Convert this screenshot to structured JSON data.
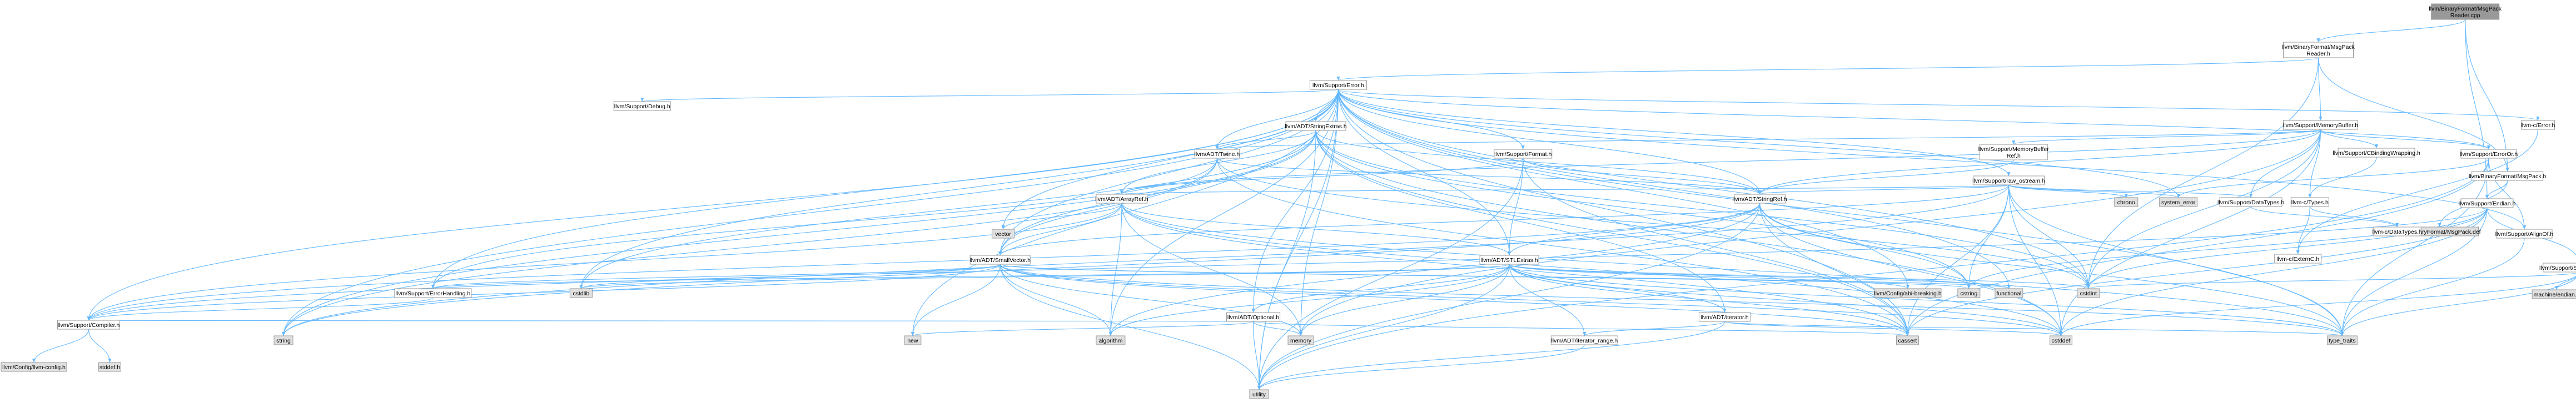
{
  "colors": {
    "edge": "#63b8ff",
    "border": "#999999",
    "white": "#ffffff",
    "grey": "#e0e0e0",
    "root": "#999999",
    "red_text": "#ff0000",
    "black_text": "#000000"
  },
  "nodes": [
    {
      "id": "root",
      "label": "llvm/BinaryFormat/MsgPack\nReader.cpp",
      "style": "root"
    },
    {
      "id": "reader_h",
      "label": "llvm/BinaryFormat/MsgPack\nReader.h",
      "style": "white"
    },
    {
      "id": "error_h",
      "label": "llvm/Support/Error.h",
      "style": "white"
    },
    {
      "id": "debug_h",
      "label": "llvm/Support/Debug.h",
      "style": "white"
    },
    {
      "id": "stringextras_h",
      "label": "llvm/ADT/StringExtras.h",
      "style": "red"
    },
    {
      "id": "twine_h",
      "label": "llvm/ADT/Twine.h",
      "style": "white"
    },
    {
      "id": "format_h",
      "label": "llvm/Support/Format.h",
      "style": "red"
    },
    {
      "id": "membuf_h",
      "label": "llvm/Support/MemoryBuffer.h",
      "style": "white"
    },
    {
      "id": "membufref_h",
      "label": "llvm/Support/MemoryBuffer\nRef.h",
      "style": "white"
    },
    {
      "id": "cbinding_h",
      "label": "llvm/Support/CBindingWrapping.h",
      "style": "red"
    },
    {
      "id": "rawostream_h",
      "label": "llvm/Support/raw_ostream.h",
      "style": "white"
    },
    {
      "id": "llvmc_error_h",
      "label": "llvm-c/Error.h",
      "style": "white"
    },
    {
      "id": "erroror_h",
      "label": "llvm/Support/ErrorOr.h",
      "style": "white"
    },
    {
      "id": "msgpack_h",
      "label": "llvm/BinaryFormat/MsgPack.h",
      "style": "white"
    },
    {
      "id": "endian_h",
      "label": "llvm/Support/Endian.h",
      "style": "white"
    },
    {
      "id": "alignof_h",
      "label": "llvm/Support/AlignOf.h",
      "style": "white"
    },
    {
      "id": "msgpack_def",
      "label": "llvm/BinaryFormat/MsgPack.def",
      "style": "grey"
    },
    {
      "id": "swapbyte_h",
      "label": "llvm/Support/SwapByteOrder.h",
      "style": "white"
    },
    {
      "id": "machine_endian",
      "label": "machine/endian.h",
      "style": "grey"
    },
    {
      "id": "arrayref_h",
      "label": "llvm/ADT/ArrayRef.h",
      "style": "red"
    },
    {
      "id": "stringref_h",
      "label": "llvm/ADT/StringRef.h",
      "style": "red"
    },
    {
      "id": "chrono",
      "label": "chrono",
      "style": "grey"
    },
    {
      "id": "datatypes_h",
      "label": "llvm/Support/DataTypes.h",
      "style": "white"
    },
    {
      "id": "system_error",
      "label": "system_error",
      "style": "grey"
    },
    {
      "id": "llvmc_types_h",
      "label": "llvm-c/Types.h",
      "style": "white"
    },
    {
      "id": "llvmc_datatypes_h",
      "label": "llvm-c/DataTypes.h",
      "style": "red"
    },
    {
      "id": "llvmc_externc_h",
      "label": "llvm-c/ExternC.h",
      "style": "white"
    },
    {
      "id": "vector",
      "label": "vector",
      "style": "grey"
    },
    {
      "id": "smallvector_h",
      "label": "llvm/ADT/SmallVector.h",
      "style": "red"
    },
    {
      "id": "stlextras_h",
      "label": "llvm/ADT/STLExtras.h",
      "style": "red"
    },
    {
      "id": "abibreaking_h",
      "label": "llvm/Config/abi-breaking.h",
      "style": "grey"
    },
    {
      "id": "cstring",
      "label": "cstring",
      "style": "grey"
    },
    {
      "id": "functional",
      "label": "functional",
      "style": "grey"
    },
    {
      "id": "cstdint",
      "label": "cstdint",
      "style": "grey"
    },
    {
      "id": "cstdlib",
      "label": "cstdlib",
      "style": "grey"
    },
    {
      "id": "errorhandling_h",
      "label": "llvm/Support/ErrorHandling.h",
      "style": "white"
    },
    {
      "id": "optional_h",
      "label": "llvm/ADT/Optional.h",
      "style": "red"
    },
    {
      "id": "iterator_h",
      "label": "llvm/ADT/iterator.h",
      "style": "red"
    },
    {
      "id": "compiler_h",
      "label": "llvm/Support/Compiler.h",
      "style": "white"
    },
    {
      "id": "new",
      "label": "new",
      "style": "grey"
    },
    {
      "id": "algorithm",
      "label": "algorithm",
      "style": "grey"
    },
    {
      "id": "memory",
      "label": "memory",
      "style": "grey"
    },
    {
      "id": "iterrange_h",
      "label": "llvm/ADT/iterator_range.h",
      "style": "white"
    },
    {
      "id": "cassert",
      "label": "cassert",
      "style": "grey"
    },
    {
      "id": "cstddef",
      "label": "cstddef",
      "style": "grey"
    },
    {
      "id": "type_traits",
      "label": "type_traits",
      "style": "grey"
    },
    {
      "id": "string",
      "label": "string",
      "style": "grey"
    },
    {
      "id": "llvm_config_h",
      "label": "llvm/Config/llvm-config.h",
      "style": "grey"
    },
    {
      "id": "stddef_h",
      "label": "stddef.h",
      "style": "grey"
    },
    {
      "id": "utility",
      "label": "utility",
      "style": "grey"
    }
  ],
  "edges": [
    [
      "root",
      "reader_h"
    ],
    [
      "root",
      "msgpack_h"
    ],
    [
      "root",
      "endian_h"
    ],
    [
      "reader_h",
      "error_h"
    ],
    [
      "reader_h",
      "membuf_h"
    ],
    [
      "reader_h",
      "cstdint"
    ],
    [
      "reader_h",
      "msgpack_h"
    ],
    [
      "error_h",
      "debug_h"
    ],
    [
      "error_h",
      "stringextras_h"
    ],
    [
      "error_h",
      "twine_h"
    ],
    [
      "error_h",
      "format_h"
    ],
    [
      "error_h",
      "rawostream_h"
    ],
    [
      "error_h",
      "llvmc_error_h"
    ],
    [
      "error_h",
      "erroror_h"
    ],
    [
      "error_h",
      "stringref_h"
    ],
    [
      "error_h",
      "smallvector_h"
    ],
    [
      "error_h",
      "stlextras_h"
    ],
    [
      "error_h",
      "abibreaking_h"
    ],
    [
      "error_h",
      "errorhandling_h"
    ],
    [
      "error_h",
      "compiler_h"
    ],
    [
      "error_h",
      "cassert"
    ],
    [
      "error_h",
      "cstdint"
    ],
    [
      "error_h",
      "cstdlib"
    ],
    [
      "error_h",
      "functional"
    ],
    [
      "error_h",
      "memory"
    ],
    [
      "error_h",
      "new"
    ],
    [
      "error_h",
      "optional_h"
    ],
    [
      "error_h",
      "string"
    ],
    [
      "error_h",
      "system_error"
    ],
    [
      "error_h",
      "type_traits"
    ],
    [
      "error_h",
      "utility"
    ],
    [
      "error_h",
      "vector"
    ],
    [
      "error_h",
      "alignof_h"
    ],
    [
      "error_h",
      "algorithm"
    ],
    [
      "stringextras_h",
      "arrayref_h"
    ],
    [
      "stringextras_h",
      "smallvector_h"
    ],
    [
      "stringextras_h",
      "stringref_h"
    ],
    [
      "stringextras_h",
      "twine_h"
    ],
    [
      "stringextras_h",
      "cassert"
    ],
    [
      "stringextras_h",
      "cstddef"
    ],
    [
      "stringextras_h",
      "cstdint"
    ],
    [
      "stringextras_h",
      "cstdlib"
    ],
    [
      "stringextras_h",
      "cstring"
    ],
    [
      "stringextras_h",
      "iterator_h"
    ],
    [
      "stringextras_h",
      "string"
    ],
    [
      "stringextras_h",
      "utility"
    ],
    [
      "twine_h",
      "smallvector_h"
    ],
    [
      "twine_h",
      "stringref_h"
    ],
    [
      "twine_h",
      "errorhandling_h"
    ],
    [
      "twine_h",
      "cassert"
    ],
    [
      "twine_h",
      "cstdint"
    ],
    [
      "twine_h",
      "string"
    ],
    [
      "format_h",
      "arrayref_h"
    ],
    [
      "format_h",
      "stlextras_h"
    ],
    [
      "format_h",
      "stringref_h"
    ],
    [
      "format_h",
      "cassert"
    ],
    [
      "format_h",
      "cstdio"
    ],
    [
      "format_h",
      "tuple"
    ],
    [
      "format_h",
      "utility"
    ],
    [
      "membuf_h",
      "cbinding_h"
    ],
    [
      "membuf_h",
      "membufref_h"
    ],
    [
      "membuf_h",
      "arrayref_h"
    ],
    [
      "membuf_h",
      "stringref_h"
    ],
    [
      "membuf_h",
      "twine_h"
    ],
    [
      "membuf_h",
      "datatypes_h"
    ],
    [
      "membuf_h",
      "erroror_h"
    ],
    [
      "membuf_h",
      "llvmc_types_h"
    ],
    [
      "membuf_h",
      "cstddef"
    ],
    [
      "membuf_h",
      "cstdint"
    ],
    [
      "membuf_h",
      "memory"
    ],
    [
      "membufref_h",
      "stringref_h"
    ],
    [
      "cbinding_h",
      "llvmc_types_h"
    ],
    [
      "rawostream_h",
      "arrayref_h"
    ],
    [
      "rawostream_h",
      "smallvector_h"
    ],
    [
      "rawostream_h",
      "stringref_h"
    ],
    [
      "rawostream_h",
      "datatypes_h"
    ],
    [
      "rawostream_h",
      "chrono"
    ],
    [
      "rawostream_h",
      "cassert"
    ],
    [
      "rawostream_h",
      "cstddef"
    ],
    [
      "rawostream_h",
      "cstdint"
    ],
    [
      "rawostream_h",
      "cstring"
    ],
    [
      "rawostream_h",
      "string"
    ],
    [
      "rawostream_h",
      "system_error"
    ],
    [
      "rawostream_h",
      "type_traits"
    ],
    [
      "llvmc_error_h",
      "llvmc_externc_h"
    ],
    [
      "erroror_h",
      "alignof_h"
    ],
    [
      "erroror_h",
      "cassert"
    ],
    [
      "erroror_h",
      "system_error"
    ],
    [
      "erroror_h",
      "type_traits"
    ],
    [
      "erroror_h",
      "utility"
    ],
    [
      "msgpack_h",
      "msgpack_def"
    ],
    [
      "msgpack_h",
      "endian_h"
    ],
    [
      "endian_h",
      "compiler_h"
    ],
    [
      "endian_h",
      "swapbyte_h"
    ],
    [
      "endian_h",
      "cassert"
    ],
    [
      "endian_h",
      "cstddef"
    ],
    [
      "endian_h",
      "cstdint"
    ],
    [
      "endian_h",
      "cstring"
    ],
    [
      "endian_h",
      "type_traits"
    ],
    [
      "swapbyte_h",
      "cstddef"
    ],
    [
      "swapbyte_h",
      "cstdint"
    ],
    [
      "swapbyte_h",
      "type_traits"
    ],
    [
      "swapbyte_h",
      "machine_endian"
    ],
    [
      "alignof_h",
      "type_traits"
    ],
    [
      "arrayref_h",
      "smallvector_h"
    ],
    [
      "arrayref_h",
      "stlextras_h"
    ],
    [
      "arrayref_h",
      "compiler_h"
    ],
    [
      "arrayref_h",
      "algorithm"
    ],
    [
      "arrayref_h",
      "array"
    ],
    [
      "arrayref_h",
      "cassert"
    ],
    [
      "arrayref_h",
      "cstddef"
    ],
    [
      "arrayref_h",
      "initializer_list"
    ],
    [
      "arrayref_h",
      "iterator"
    ],
    [
      "arrayref_h",
      "memory"
    ],
    [
      "arrayref_h",
      "type_traits"
    ],
    [
      "arrayref_h",
      "vector"
    ],
    [
      "stringref_h",
      "stlextras_h"
    ],
    [
      "stringref_h",
      "iterator_range"
    ],
    [
      "stringref_h",
      "compiler_h"
    ],
    [
      "stringref_h",
      "algorithm"
    ],
    [
      "stringref_h",
      "cassert"
    ],
    [
      "stringref_h",
      "cstddef"
    ],
    [
      "stringref_h",
      "cstring"
    ],
    [
      "stringref_h",
      "limits"
    ],
    [
      "stringref_h",
      "string"
    ],
    [
      "stringref_h",
      "type_traits"
    ],
    [
      "stringref_h",
      "utility"
    ],
    [
      "datatypes_h",
      "llvmc_datatypes_h"
    ],
    [
      "llvmc_types_h",
      "llvmc_datatypes_h"
    ],
    [
      "llvmc_types_h",
      "llvmc_externc_h"
    ],
    [
      "smallvector_h",
      "compiler_h"
    ],
    [
      "smallvector_h",
      "errorhandling_h"
    ],
    [
      "smallvector_h",
      "algorithm"
    ],
    [
      "smallvector_h",
      "cassert"
    ],
    [
      "smallvector_h",
      "cstddef"
    ],
    [
      "smallvector_h",
      "cstdlib"
    ],
    [
      "smallvector_h",
      "cstring"
    ],
    [
      "smallvector_h",
      "functional"
    ],
    [
      "smallvector_h",
      "memory"
    ],
    [
      "smallvector_h",
      "new"
    ],
    [
      "smallvector_h",
      "type_traits"
    ],
    [
      "smallvector_h",
      "utility"
    ],
    [
      "stlextras_h",
      "optional_h"
    ],
    [
      "stlextras_h",
      "iterator_h"
    ],
    [
      "stlextras_h",
      "iterrange_h"
    ],
    [
      "stlextras_h",
      "abibreaking_h"
    ],
    [
      "stlextras_h",
      "errorhandling_h"
    ],
    [
      "stlextras_h",
      "algorithm"
    ],
    [
      "stlextras_h",
      "cassert"
    ],
    [
      "stlextras_h",
      "cstddef"
    ],
    [
      "stlextras_h",
      "cstdint"
    ],
    [
      "stlextras_h",
      "cstdlib"
    ],
    [
      "stlextras_h",
      "functional"
    ],
    [
      "stlextras_h",
      "memory"
    ],
    [
      "stlextras_h",
      "type_traits"
    ],
    [
      "stlextras_h",
      "utility"
    ],
    [
      "errorhandling_h",
      "compiler_h"
    ],
    [
      "optional_h",
      "compiler_h"
    ],
    [
      "optional_h",
      "cassert"
    ],
    [
      "optional_h",
      "memory"
    ],
    [
      "optional_h",
      "new"
    ],
    [
      "optional_h",
      "utility"
    ],
    [
      "iterator_h",
      "iterrange_h"
    ],
    [
      "iterator_h",
      "cstddef"
    ],
    [
      "iterator_h",
      "type_traits"
    ],
    [
      "iterator_h",
      "utility"
    ],
    [
      "iterrange_h",
      "utility"
    ],
    [
      "compiler_h",
      "llvm_config_h"
    ],
    [
      "compiler_h",
      "stddef_h"
    ]
  ]
}
